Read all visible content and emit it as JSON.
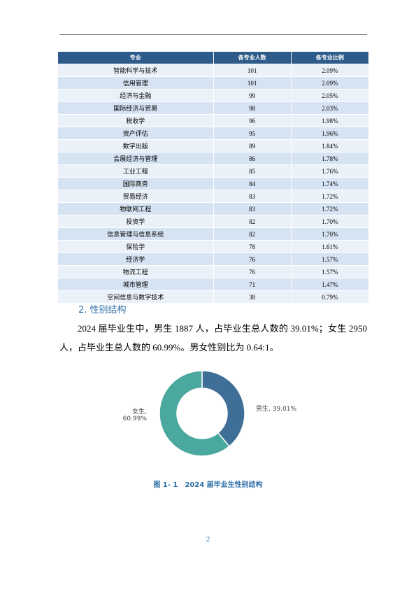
{
  "table": {
    "header": [
      "专业",
      "各专业人数",
      "各专业比例"
    ],
    "rows": [
      [
        "智能科学与技术",
        101,
        "2.09%"
      ],
      [
        "信用管理",
        101,
        "2.09%"
      ],
      [
        "经济与金融",
        99,
        "2.05%"
      ],
      [
        "国际经济与贸易",
        98,
        "2.03%"
      ],
      [
        "税收学",
        96,
        "1.98%"
      ],
      [
        "资产评估",
        95,
        "1.96%"
      ],
      [
        "数字出版",
        89,
        "1.84%"
      ],
      [
        "会展经济与管理",
        86,
        "1.78%"
      ],
      [
        "工业工程",
        85,
        "1.76%"
      ],
      [
        "国际商务",
        84,
        "1.74%"
      ],
      [
        "贸易经济",
        83,
        "1.72%"
      ],
      [
        "物联网工程",
        83,
        "1.72%"
      ],
      [
        "投资学",
        82,
        "1.70%"
      ],
      [
        "信息管理与信息系统",
        82,
        "1.70%"
      ],
      [
        "保险学",
        78,
        "1.61%"
      ],
      [
        "经济学",
        76,
        "1.57%"
      ],
      [
        "物流工程",
        76,
        "1.57%"
      ],
      [
        "城市管理",
        71,
        "1.47%"
      ],
      [
        "空间信息与数字技术",
        38,
        "0.79%"
      ]
    ]
  },
  "section": {
    "heading": "2. 性别结构",
    "paragraph": "2024 届毕业生中，男生 1887 人，占毕业生总人数的 39.01%；女生 2950 人，占毕业生总人数的 60.99%。男女性别比为 0.64:1。"
  },
  "chart_data": {
    "type": "donut",
    "values": [
      39.01,
      60.99
    ],
    "value_labels": [
      "男生, 39.01%",
      "女生, 60.99%"
    ],
    "colors": [
      "#3f6e96",
      "#4aa89e"
    ]
  },
  "caption": "图 1- 1　2024 届毕业生性别结构",
  "page_number": "2"
}
